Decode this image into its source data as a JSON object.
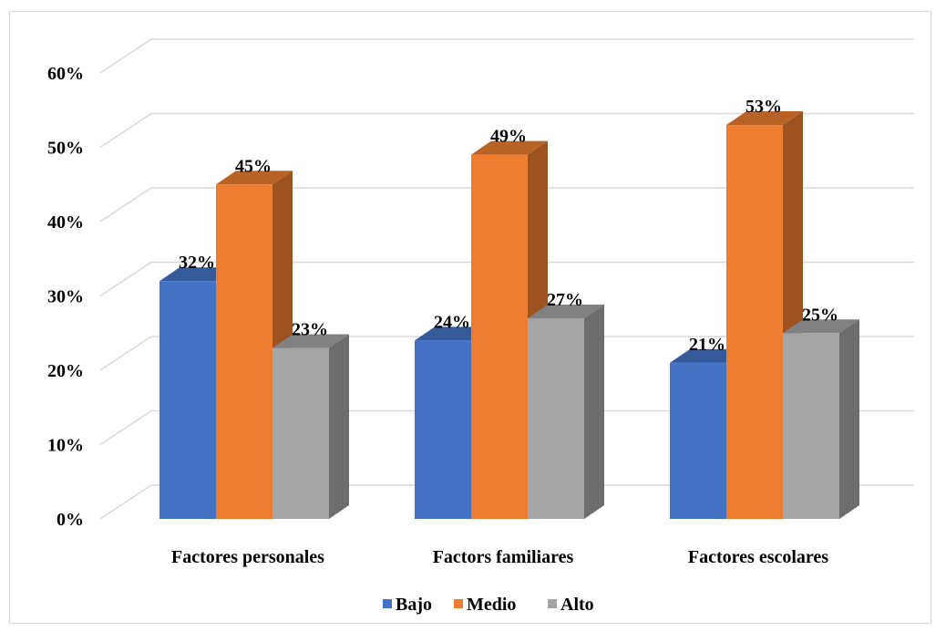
{
  "chart_data": {
    "type": "bar",
    "title": "",
    "xlabel": "",
    "ylabel": "",
    "categories": [
      "Factores personales",
      "Factors familiares",
      "Factores escolares"
    ],
    "series": [
      {
        "name": "Bajo",
        "color": "#4472c4",
        "values": [
          32,
          24,
          21
        ],
        "labels": [
          "32%",
          "24%",
          "21%"
        ]
      },
      {
        "name": "Medio",
        "color": "#ed7d31",
        "values": [
          45,
          49,
          53
        ],
        "labels": [
          "45%",
          "49%",
          "53%"
        ]
      },
      {
        "name": "Alto",
        "color": "#a5a5a5",
        "values": [
          23,
          27,
          25
        ],
        "labels": [
          "23%",
          "27%",
          "25%"
        ]
      }
    ],
    "ylim": [
      0,
      60
    ],
    "yticks": [
      "0%",
      "10%",
      "20%",
      "30%",
      "40%",
      "50%",
      "60%"
    ],
    "grid": true,
    "legend_position": "bottom",
    "style": "3d-clustered-column"
  }
}
